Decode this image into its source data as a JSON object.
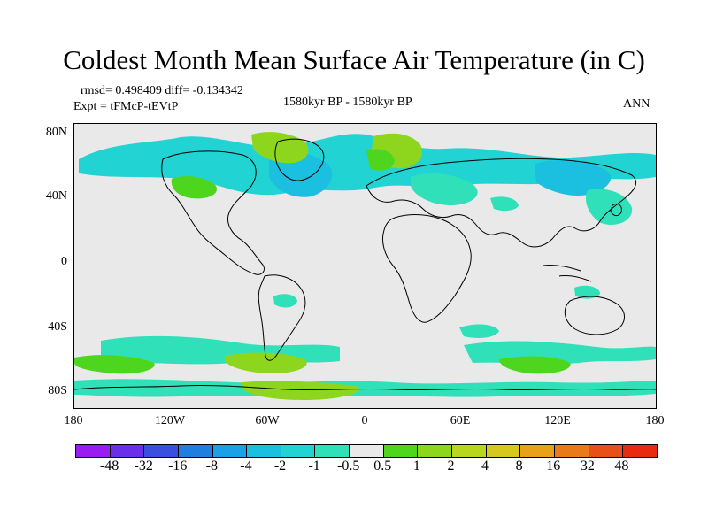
{
  "title": "Coldest Month Mean Surface Air Temperature (in C)",
  "stats": "rmsd= 0.498409 diff= -0.134342",
  "experiment": "Expt = tFMcP-tEVtP",
  "period": "1580kyr BP - 1580kyr BP",
  "season": "ANN",
  "lat_labels": [
    "80N",
    "40N",
    "0",
    "40S",
    "80S"
  ],
  "lon_labels": [
    "180",
    "120W",
    "60W",
    "0",
    "60E",
    "120E",
    "180"
  ],
  "colorbar": {
    "labels": [
      "-48",
      "-32",
      "-16",
      "-8",
      "-4",
      "-2",
      "-1",
      "-0.5",
      "0.5",
      "1",
      "2",
      "4",
      "8",
      "16",
      "32",
      "48"
    ],
    "colors": [
      "#9b1cf0",
      "#6a2fe8",
      "#3a4fe0",
      "#1f7fe0",
      "#1aa0e8",
      "#1bbfe0",
      "#22d3d3",
      "#30e0b8",
      "#e9e9e9",
      "#4ed61e",
      "#8ed61e",
      "#b8d61e",
      "#d6c81e",
      "#e8a21a",
      "#e87a1a",
      "#e8501a",
      "#e82a10"
    ]
  },
  "map_colors": {
    "ocean_land": "#e9e9e9",
    "cold_light": "#30e0b8",
    "cold_mid": "#22d3d3",
    "cold_strong": "#1bbfe0",
    "warm_light": "#4ed61e",
    "warm_mid": "#8ed61e"
  }
}
